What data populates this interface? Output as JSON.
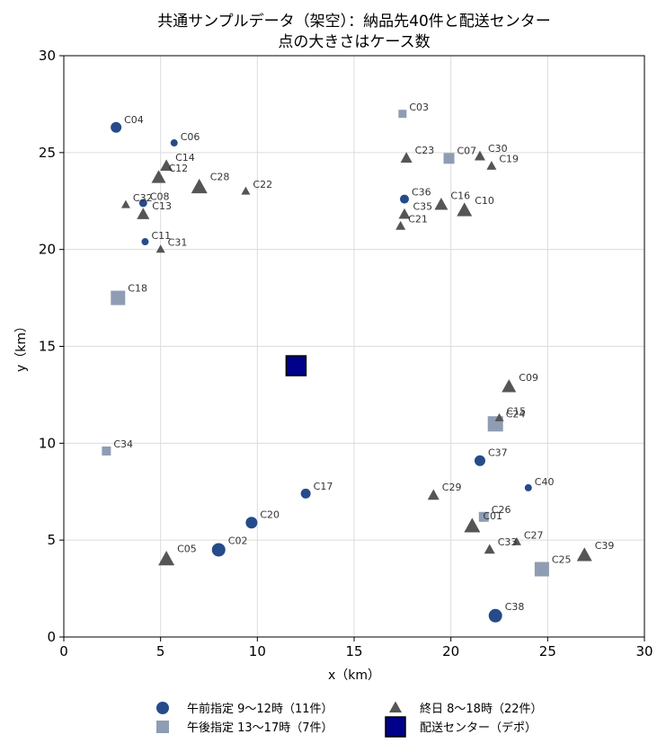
{
  "chart_data": {
    "type": "scatter",
    "title": [
      "共通サンプルデータ（架空）：納品先40件と配送センター",
      "点の大きさはケース数"
    ],
    "xlabel": "x（km）",
    "ylabel": "y（km）",
    "xlim": [
      0,
      30
    ],
    "ylim": [
      0,
      30
    ],
    "xticks": [
      0,
      5,
      10,
      15,
      20,
      25,
      30
    ],
    "yticks": [
      0,
      5,
      10,
      15,
      20,
      25,
      30
    ],
    "grid": true,
    "legend_position": "bottom",
    "series": [
      {
        "name": "午前指定 9〜12時（11件）",
        "marker": "circle",
        "color": "#264b8a",
        "points": [
          {
            "id": "C04",
            "x": 2.7,
            "y": 26.3,
            "size": 12
          },
          {
            "id": "C06",
            "x": 5.7,
            "y": 25.5,
            "size": 8
          },
          {
            "id": "C08",
            "x": 4.1,
            "y": 22.4,
            "size": 9
          },
          {
            "id": "C11",
            "x": 4.2,
            "y": 20.4,
            "size": 8
          },
          {
            "id": "C36",
            "x": 17.6,
            "y": 22.6,
            "size": 10
          },
          {
            "id": "C37",
            "x": 21.5,
            "y": 9.1,
            "size": 12
          },
          {
            "id": "C40",
            "x": 24.0,
            "y": 7.7,
            "size": 8
          },
          {
            "id": "C17",
            "x": 12.5,
            "y": 7.4,
            "size": 11
          },
          {
            "id": "C20",
            "x": 9.7,
            "y": 5.9,
            "size": 13
          },
          {
            "id": "C02",
            "x": 8.0,
            "y": 4.5,
            "size": 15
          },
          {
            "id": "C38",
            "x": 22.3,
            "y": 1.1,
            "size": 15
          }
        ]
      },
      {
        "name": "午後指定 13〜17時（7件）",
        "marker": "square",
        "color": "#8e9db3",
        "points": [
          {
            "id": "C03",
            "x": 17.5,
            "y": 27.0,
            "size": 9
          },
          {
            "id": "C07",
            "x": 19.9,
            "y": 24.7,
            "size": 12
          },
          {
            "id": "C18",
            "x": 2.8,
            "y": 17.5,
            "size": 16
          },
          {
            "id": "C24",
            "x": 22.3,
            "y": 11.0,
            "size": 17
          },
          {
            "id": "C34",
            "x": 2.2,
            "y": 9.6,
            "size": 10
          },
          {
            "id": "C26",
            "x": 21.7,
            "y": 6.2,
            "size": 11
          },
          {
            "id": "C25",
            "x": 24.7,
            "y": 3.5,
            "size": 16
          }
        ]
      },
      {
        "name": "終日 8〜18時（22件）",
        "marker": "triangle",
        "color": "#555555",
        "points": [
          {
            "id": "C14",
            "x": 5.3,
            "y": 24.3,
            "size": 14
          },
          {
            "id": "C12",
            "x": 4.9,
            "y": 23.7,
            "size": 16
          },
          {
            "id": "C28",
            "x": 7.0,
            "y": 23.2,
            "size": 18
          },
          {
            "id": "C22",
            "x": 9.4,
            "y": 23.0,
            "size": 10
          },
          {
            "id": "C32",
            "x": 3.2,
            "y": 22.3,
            "size": 10
          },
          {
            "id": "C13",
            "x": 4.1,
            "y": 21.8,
            "size": 14
          },
          {
            "id": "C31",
            "x": 5.0,
            "y": 20.0,
            "size": 10
          },
          {
            "id": "C23",
            "x": 17.7,
            "y": 24.7,
            "size": 13
          },
          {
            "id": "C30",
            "x": 21.5,
            "y": 24.8,
            "size": 12
          },
          {
            "id": "C19",
            "x": 22.1,
            "y": 24.3,
            "size": 11
          },
          {
            "id": "C16",
            "x": 19.5,
            "y": 22.3,
            "size": 15
          },
          {
            "id": "C10",
            "x": 20.7,
            "y": 22.0,
            "size": 17
          },
          {
            "id": "C35",
            "x": 17.6,
            "y": 21.8,
            "size": 13
          },
          {
            "id": "C21",
            "x": 17.4,
            "y": 21.2,
            "size": 11
          },
          {
            "id": "C09",
            "x": 23.0,
            "y": 12.9,
            "size": 16
          },
          {
            "id": "C15",
            "x": 22.5,
            "y": 11.3,
            "size": 10
          },
          {
            "id": "C29",
            "x": 19.1,
            "y": 7.3,
            "size": 13
          },
          {
            "id": "C01",
            "x": 21.1,
            "y": 5.7,
            "size": 18
          },
          {
            "id": "C27",
            "x": 23.4,
            "y": 4.9,
            "size": 10
          },
          {
            "id": "C33",
            "x": 22.0,
            "y": 4.5,
            "size": 12
          },
          {
            "id": "C39",
            "x": 26.9,
            "y": 4.2,
            "size": 17
          },
          {
            "id": "C05",
            "x": 5.3,
            "y": 4.0,
            "size": 18
          }
        ]
      },
      {
        "name": "配送センター（デポ）",
        "marker": "square",
        "color": "#00008b",
        "points": [
          {
            "id": "",
            "x": 12.0,
            "y": 14.0,
            "size": 22
          }
        ]
      }
    ]
  }
}
